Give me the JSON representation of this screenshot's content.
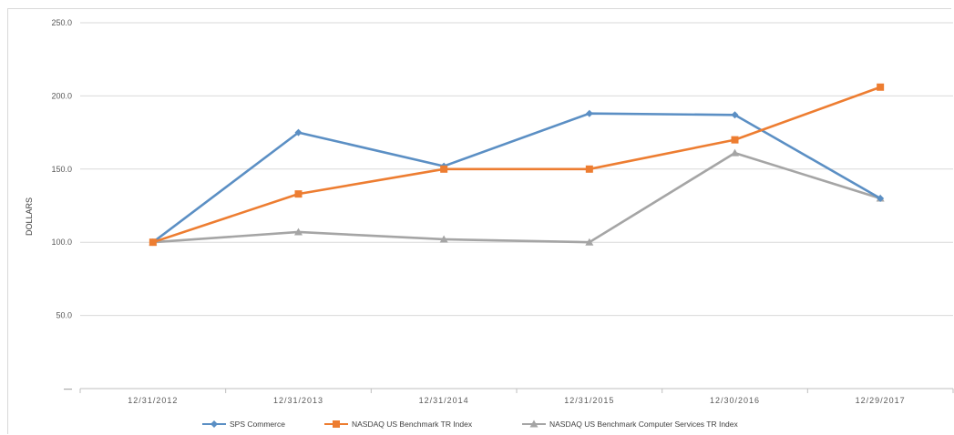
{
  "chart_data": {
    "type": "line",
    "title": "",
    "xlabel": "",
    "ylabel": "DOLLARS",
    "categories": [
      "12/31/2012",
      "12/31/2013",
      "12/31/2014",
      "12/31/2015",
      "12/30/2016",
      "12/29/2017"
    ],
    "ylim": [
      0,
      250
    ],
    "yticks": [
      0,
      50,
      100,
      150,
      200,
      250
    ],
    "ytick_labels": [
      "—",
      "50.0",
      "100.0",
      "150.0",
      "200.0",
      "250.0"
    ],
    "grid": true,
    "legend_position": "bottom",
    "series": [
      {
        "name": "SPS Commerce",
        "color": "#5b8fc4",
        "marker": "diamond",
        "values": [
          100,
          175,
          152,
          188,
          187,
          130
        ]
      },
      {
        "name": "NASDAQ US Benchmark TR Index",
        "color": "#ed7d31",
        "marker": "square",
        "values": [
          100,
          133,
          150,
          150,
          170,
          206
        ]
      },
      {
        "name": "NASDAQ US Benchmark Computer Services TR Index",
        "color": "#a5a5a5",
        "marker": "triangle",
        "values": [
          100,
          107,
          102,
          100,
          161,
          130
        ]
      }
    ]
  }
}
